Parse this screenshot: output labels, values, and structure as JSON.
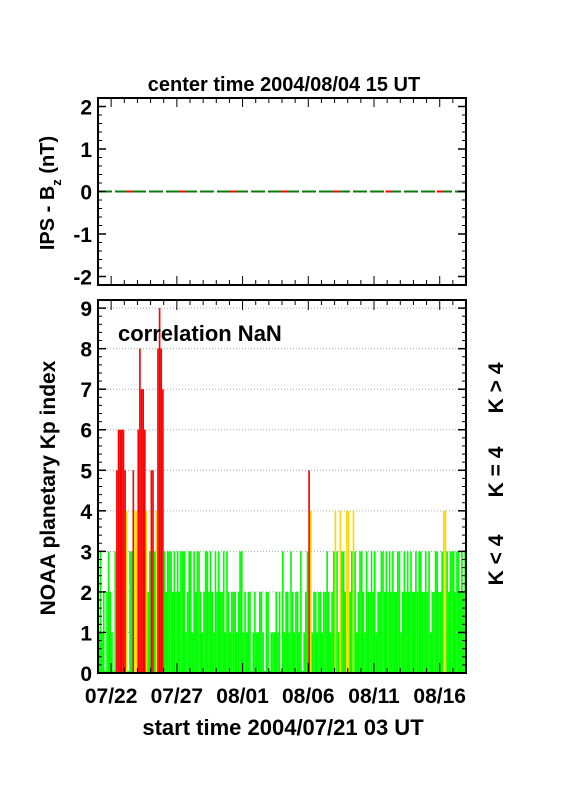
{
  "chart_data": [
    {
      "type": "line",
      "title": "center time 2004/08/04 15 UT",
      "ylabel": "IPS - Bz (nT)",
      "ylabel_main": "IPS - B",
      "ylabel_sub": "z",
      "ylabel_unit": " (nT)",
      "ylim": [
        -2.2,
        2.2
      ],
      "yticks": [
        -2,
        -1,
        0,
        1,
        2
      ],
      "xlim": [
        0,
        28
      ],
      "series": [
        {
          "color": "#0a7a0a",
          "x": [
            0,
            28
          ],
          "y": [
            0,
            0
          ]
        }
      ],
      "red_markers_x": [
        2.4,
        6.4,
        10.3,
        14.2,
        18.1,
        22.1,
        26.0
      ]
    },
    {
      "type": "bar",
      "ylabel": "NOAA planetary Kp index",
      "annotation": "correlation NaN",
      "xlabel": "start time 2004/07/21 03 UT",
      "ylim": [
        0,
        9.2
      ],
      "yticks": [
        0,
        1,
        2,
        3,
        4,
        5,
        6,
        7,
        8,
        9
      ],
      "xlim": [
        0,
        28
      ],
      "xtick_values": [
        1,
        6,
        11,
        16,
        21,
        26
      ],
      "xtick_labels": [
        "07/22",
        "07/27",
        "08/01",
        "08/06",
        "08/11",
        "08/16"
      ],
      "grid": true,
      "bin_hours": 3,
      "legend": [
        {
          "label": "K > 4",
          "color": "#ff0000"
        },
        {
          "label": "K = 4",
          "color": "#ffd700"
        },
        {
          "label": "K < 4",
          "color": "#00ff00"
        }
      ],
      "kp_per_day": [
        [
          1,
          3,
          1,
          2,
          0,
          2,
          3,
          2
        ],
        [
          1,
          0,
          3,
          5,
          6,
          6,
          6,
          6
        ],
        [
          5,
          4,
          0,
          3,
          3,
          5,
          4,
          4
        ],
        [
          6,
          8,
          7,
          7,
          6,
          4,
          2,
          3
        ],
        [
          5,
          5,
          3,
          4,
          8,
          9,
          8,
          7
        ],
        [
          3,
          2,
          3,
          3,
          3,
          2,
          3,
          2
        ],
        [
          3,
          2,
          3,
          3,
          3,
          1,
          2,
          3
        ],
        [
          3,
          1,
          3,
          2,
          3,
          3,
          2,
          1
        ],
        [
          2,
          3,
          3,
          2,
          3,
          2,
          1,
          3
        ],
        [
          2,
          3,
          2,
          2,
          3,
          1,
          3,
          2
        ],
        [
          1,
          2,
          2,
          2,
          1,
          2,
          3,
          3
        ],
        [
          1,
          2,
          1,
          2,
          2,
          0,
          1,
          2
        ],
        [
          1,
          1,
          2,
          2,
          1,
          0,
          2,
          2
        ],
        [
          0,
          1,
          1,
          1,
          2,
          1,
          2,
          0
        ],
        [
          3,
          1,
          2,
          2,
          1,
          3,
          2,
          1
        ],
        [
          2,
          2,
          1,
          3,
          0,
          1,
          2,
          3
        ],
        [
          5,
          4,
          1,
          2,
          2,
          1,
          2,
          2
        ],
        [
          1,
          2,
          2,
          3,
          2,
          1,
          2,
          3
        ],
        [
          4,
          3,
          1,
          4,
          3,
          3,
          2,
          4
        ],
        [
          4,
          2,
          3,
          4,
          3,
          1,
          2,
          3
        ],
        [
          3,
          2,
          1,
          3,
          2,
          2,
          3,
          2
        ],
        [
          3,
          1,
          2,
          2,
          3,
          3,
          2,
          3
        ],
        [
          2,
          3,
          2,
          3,
          2,
          2,
          3,
          3
        ],
        [
          1,
          2,
          3,
          2,
          3,
          2,
          3,
          2
        ],
        [
          2,
          3,
          2,
          3,
          3,
          2,
          2,
          3
        ],
        [
          2,
          3,
          1,
          2,
          2,
          3,
          3,
          2
        ],
        [
          2,
          3,
          4,
          4,
          3,
          2,
          3,
          3
        ],
        [
          3,
          2,
          3,
          3,
          2,
          3,
          2,
          3
        ]
      ]
    }
  ]
}
